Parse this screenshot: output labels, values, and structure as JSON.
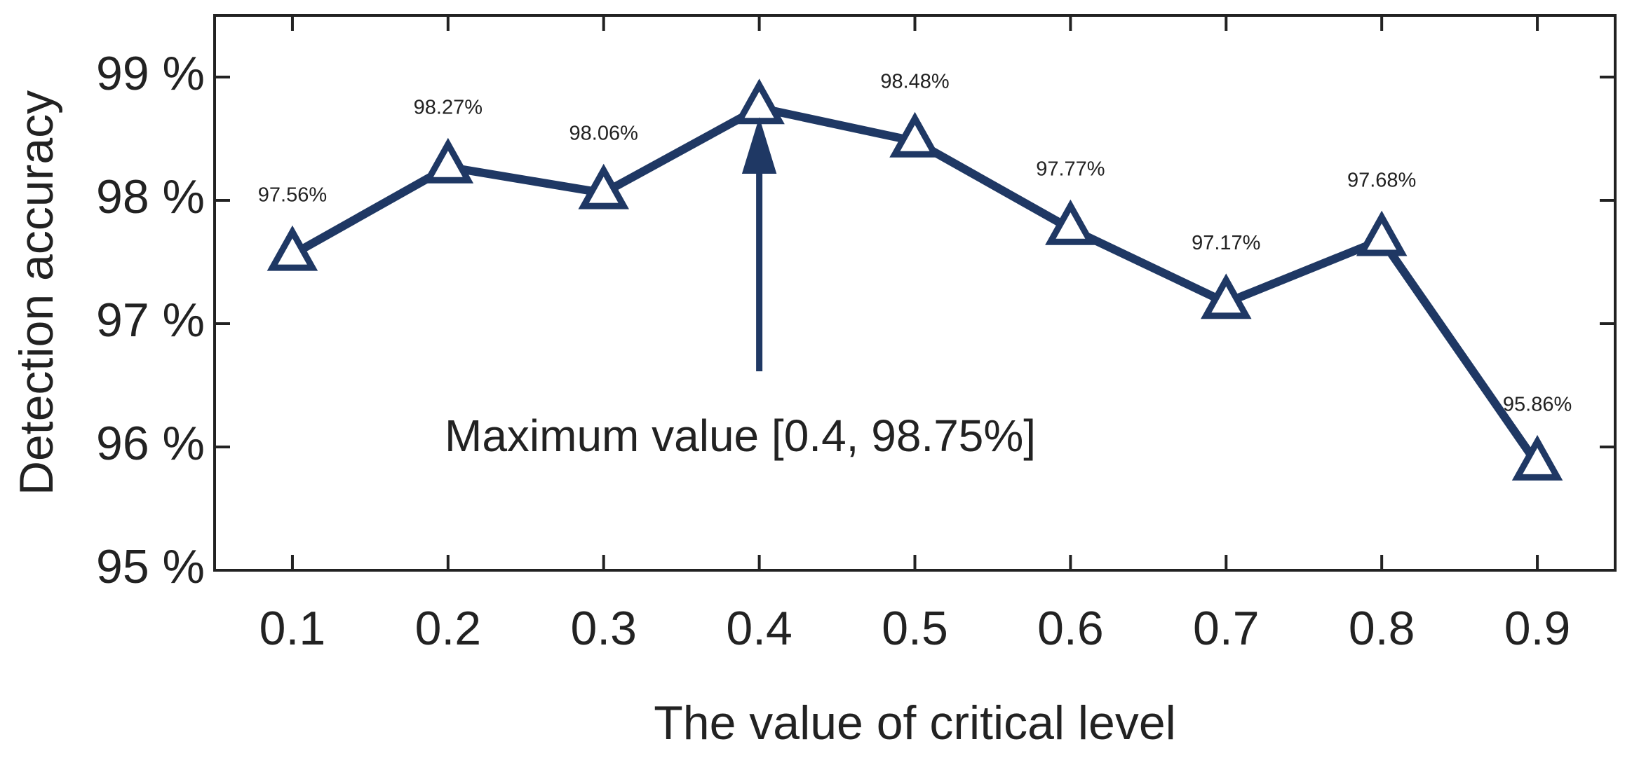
{
  "chart_data": {
    "type": "line",
    "title": "",
    "xlabel": "The value of critical level",
    "ylabel": "Detection accuracy",
    "x": [
      0.1,
      0.2,
      0.3,
      0.4,
      0.5,
      0.6,
      0.7,
      0.8,
      0.9
    ],
    "x_tick_labels": [
      "0.1",
      "0.2",
      "0.3",
      "0.4",
      "0.5",
      "0.6",
      "0.7",
      "0.8",
      "0.9"
    ],
    "xlim": [
      0.05,
      0.95
    ],
    "ylim": [
      95,
      99.5
    ],
    "y_ticks": [
      95,
      96,
      97,
      98,
      99
    ],
    "y_tick_labels": [
      "95 %",
      "96 %",
      "97 %",
      "98 %",
      "99 %"
    ],
    "grid": false,
    "series": [
      {
        "name": "Detection accuracy",
        "marker": "triangle",
        "color": "#1f3864",
        "values": [
          97.56,
          98.27,
          98.06,
          98.75,
          98.48,
          97.77,
          97.17,
          97.68,
          95.86
        ],
        "data_labels": [
          "97.56%",
          "98.27%",
          "98.06%",
          "",
          "98.48%",
          "97.77%",
          "97.17%",
          "97.68%",
          "95.86%"
        ]
      }
    ],
    "annotations": [
      {
        "text": "Maximum value [0.4, 98.75%]",
        "arrow_to": [
          0.4,
          98.75
        ]
      }
    ]
  },
  "colors": {
    "series": "#1f3864",
    "axis": "#222222",
    "background": "#ffffff"
  }
}
